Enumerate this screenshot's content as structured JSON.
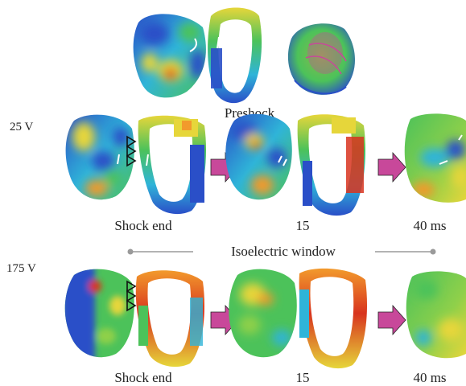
{
  "header": {
    "preshock_label": "Preshock"
  },
  "rows": [
    {
      "voltage": "25 V",
      "times": [
        "Shock end",
        "15",
        "40 ms"
      ]
    },
    {
      "voltage": "175 V",
      "times": [
        "Shock end",
        "15",
        "40 ms"
      ]
    }
  ],
  "window_label": "Isoelectric window",
  "colors": {
    "blue": "#2a4fc8",
    "cyan": "#2fb4d8",
    "green": "#4cc25a",
    "yellow": "#e6d63a",
    "orange": "#f29a2c",
    "red": "#d8341e",
    "arrow": "#c8489a",
    "line": "#9a9a9a"
  },
  "icons": [
    "shock-electrode-icon",
    "activation-arrow-icon",
    "sequence-arrow-icon"
  ]
}
